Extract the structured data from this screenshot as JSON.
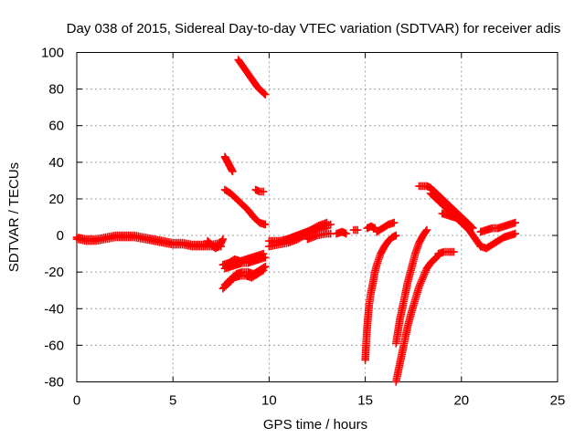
{
  "chart_data": {
    "type": "scatter",
    "title": "Day 038 of 2015, Sidereal Day-to-day VTEC variation (SDTVAR) for receiver adis",
    "xlabel": "GPS time / hours",
    "ylabel": "SDTVAR / TECUs",
    "xlim": [
      0,
      25
    ],
    "ylim": [
      -80,
      100
    ],
    "xticks": [
      0,
      5,
      10,
      15,
      20,
      25
    ],
    "yticks": [
      -80,
      -60,
      -40,
      -20,
      0,
      20,
      40,
      60,
      80,
      100
    ],
    "grid": true,
    "marker": "plus",
    "color": "#ff0000",
    "series": [
      {
        "x": [
          0,
          0.5,
          1,
          1.5,
          2,
          2.5,
          3,
          3.5,
          4,
          4.5,
          5,
          5.5,
          6,
          6.5,
          7,
          7.5
        ],
        "y": [
          -1,
          -2,
          -2,
          -1,
          0,
          0,
          0,
          -1,
          -2,
          -3,
          -4,
          -4,
          -5,
          -5,
          -5,
          -4
        ]
      },
      {
        "x": [
          0,
          0.5,
          1,
          1.5,
          2,
          2.5,
          3,
          3.5,
          4,
          4.5,
          5,
          5.5,
          6,
          6.5,
          7,
          7.5
        ],
        "y": [
          -2,
          -3,
          -3,
          -2,
          -1,
          -1,
          -1,
          -2,
          -3,
          -4,
          -5,
          -5,
          -6,
          -6,
          -6,
          -6
        ]
      },
      {
        "x": [
          6.8,
          7,
          7.2,
          7.4,
          7.6
        ],
        "y": [
          -3,
          -5,
          -7,
          -6,
          -2
        ]
      },
      {
        "x": [
          7.7,
          7.8,
          7.9,
          8,
          8.1
        ],
        "y": [
          43,
          41,
          39,
          37,
          35
        ]
      },
      {
        "x": [
          7.7,
          8,
          8.3,
          8.6,
          8.9,
          9.2,
          9.5,
          9.8
        ],
        "y": [
          25,
          23,
          20,
          17,
          14,
          10,
          7,
          6
        ]
      },
      {
        "x": [
          9.3,
          9.5,
          9.7
        ],
        "y": [
          25,
          24,
          24
        ]
      },
      {
        "x": [
          8.4,
          8.6,
          8.8,
          9,
          9.2,
          9.4,
          9.6,
          9.8
        ],
        "y": [
          96,
          93,
          90,
          87,
          84,
          81,
          79,
          77
        ]
      },
      {
        "x": [
          7.6,
          7.9,
          8.2,
          8.5,
          8.8,
          9.1,
          9.4,
          9.7
        ],
        "y": [
          -16,
          -15,
          -13,
          -14,
          -13,
          -12,
          -11,
          -10
        ]
      },
      {
        "x": [
          7.7,
          8,
          8.3,
          8.6,
          8.9,
          9.2,
          9.5,
          9.8
        ],
        "y": [
          -18,
          -17,
          -16,
          -15,
          -15,
          -14,
          -13,
          -12
        ]
      },
      {
        "x": [
          7.6,
          7.9,
          8.2,
          8.5,
          8.8,
          9.1,
          9.4,
          9.7
        ],
        "y": [
          -29,
          -26,
          -23,
          -22,
          -22,
          -23,
          -21,
          -19
        ]
      },
      {
        "x": [
          7.7,
          8,
          8.3,
          8.6,
          8.9,
          9.2,
          9.5,
          9.8
        ],
        "y": [
          -27,
          -24,
          -21,
          -20,
          -20,
          -21,
          -19,
          -17
        ]
      },
      {
        "x": [
          10,
          10.5,
          11,
          11.5,
          12,
          12.5,
          13
        ],
        "y": [
          -6,
          -5,
          -4,
          -2,
          1,
          3,
          4
        ]
      },
      {
        "x": [
          10.2,
          10.7,
          11.2,
          11.7,
          12.2,
          12.7,
          13.2
        ],
        "y": [
          -4,
          -3,
          -1,
          1,
          3,
          5,
          6
        ]
      },
      {
        "x": [
          10,
          10.5,
          11,
          11.5,
          12,
          12.5,
          13
        ],
        "y": [
          -3,
          -3,
          -2,
          0,
          2,
          5,
          7
        ]
      },
      {
        "x": [
          12,
          12.5,
          13,
          13.2
        ],
        "y": [
          -2,
          0,
          1,
          1
        ]
      },
      {
        "x": [
          13.5,
          13.8,
          14
        ],
        "y": [
          1,
          2,
          1
        ]
      },
      {
        "x": [
          14.4,
          14.6
        ],
        "y": [
          3,
          3
        ]
      },
      {
        "x": [
          15.1,
          15.3,
          15.5
        ],
        "y": [
          4,
          5,
          4
        ]
      },
      {
        "x": [
          15.6,
          15.9,
          16.2,
          16.5
        ],
        "y": [
          2,
          4,
          6,
          7
        ]
      },
      {
        "x": [
          15,
          15.05,
          15.1,
          15.15,
          15.2,
          15.3,
          15.4,
          15.5,
          15.6,
          15.8,
          16,
          16.2,
          16.4,
          16.6
        ],
        "y": [
          -68,
          -58,
          -50,
          -44,
          -38,
          -31,
          -26,
          -20,
          -16,
          -10,
          -6,
          -3,
          -1,
          0
        ]
      },
      {
        "x": [
          16.6,
          16.8,
          17,
          17.2,
          17.4,
          17.6,
          17.8,
          18,
          18.2
        ],
        "y": [
          -59,
          -46,
          -36,
          -26,
          -18,
          -10,
          -4,
          0,
          3
        ]
      },
      {
        "x": [
          16.6,
          16.8,
          17,
          17.2,
          17.4,
          17.6,
          17.8,
          18,
          18.2,
          18.4,
          18.6,
          18.8
        ],
        "y": [
          -80,
          -70,
          -60,
          -50,
          -42,
          -35,
          -28,
          -23,
          -18,
          -15,
          -13,
          -11
        ]
      },
      {
        "x": [
          18.8,
          19.1,
          19.4,
          19.6
        ],
        "y": [
          -10,
          -9,
          -9,
          -9
        ]
      },
      {
        "x": [
          17.8,
          18,
          18.2,
          18.4,
          18.6,
          18.8,
          19,
          19.2,
          19.4,
          19.6,
          19.8,
          20,
          20.2,
          20.4,
          20.6
        ],
        "y": [
          27,
          27,
          27,
          26,
          24,
          22,
          20,
          18,
          16,
          14,
          12,
          10,
          8,
          6,
          4
        ]
      },
      {
        "x": [
          18.4,
          18.6,
          18.8,
          19,
          19.2,
          19.4,
          19.6,
          19.8,
          20,
          20.2,
          20.4,
          20.6,
          20.8,
          21
        ],
        "y": [
          23,
          21,
          19,
          17,
          15,
          13,
          11,
          9,
          7,
          5,
          3,
          0,
          -3,
          -6
        ]
      },
      {
        "x": [
          19,
          19.3,
          19.6,
          19.9,
          20.2
        ],
        "y": [
          12,
          11,
          10,
          9,
          8
        ]
      },
      {
        "x": [
          21,
          21.3,
          21.6,
          21.9,
          22.2,
          22.5,
          22.8
        ],
        "y": [
          -6,
          -7,
          -5,
          -3,
          -1,
          0,
          1
        ]
      },
      {
        "x": [
          21,
          21.3,
          21.6,
          21.9,
          22.2,
          22.5,
          22.8
        ],
        "y": [
          2,
          3,
          4,
          4,
          5,
          6,
          7
        ]
      }
    ]
  }
}
